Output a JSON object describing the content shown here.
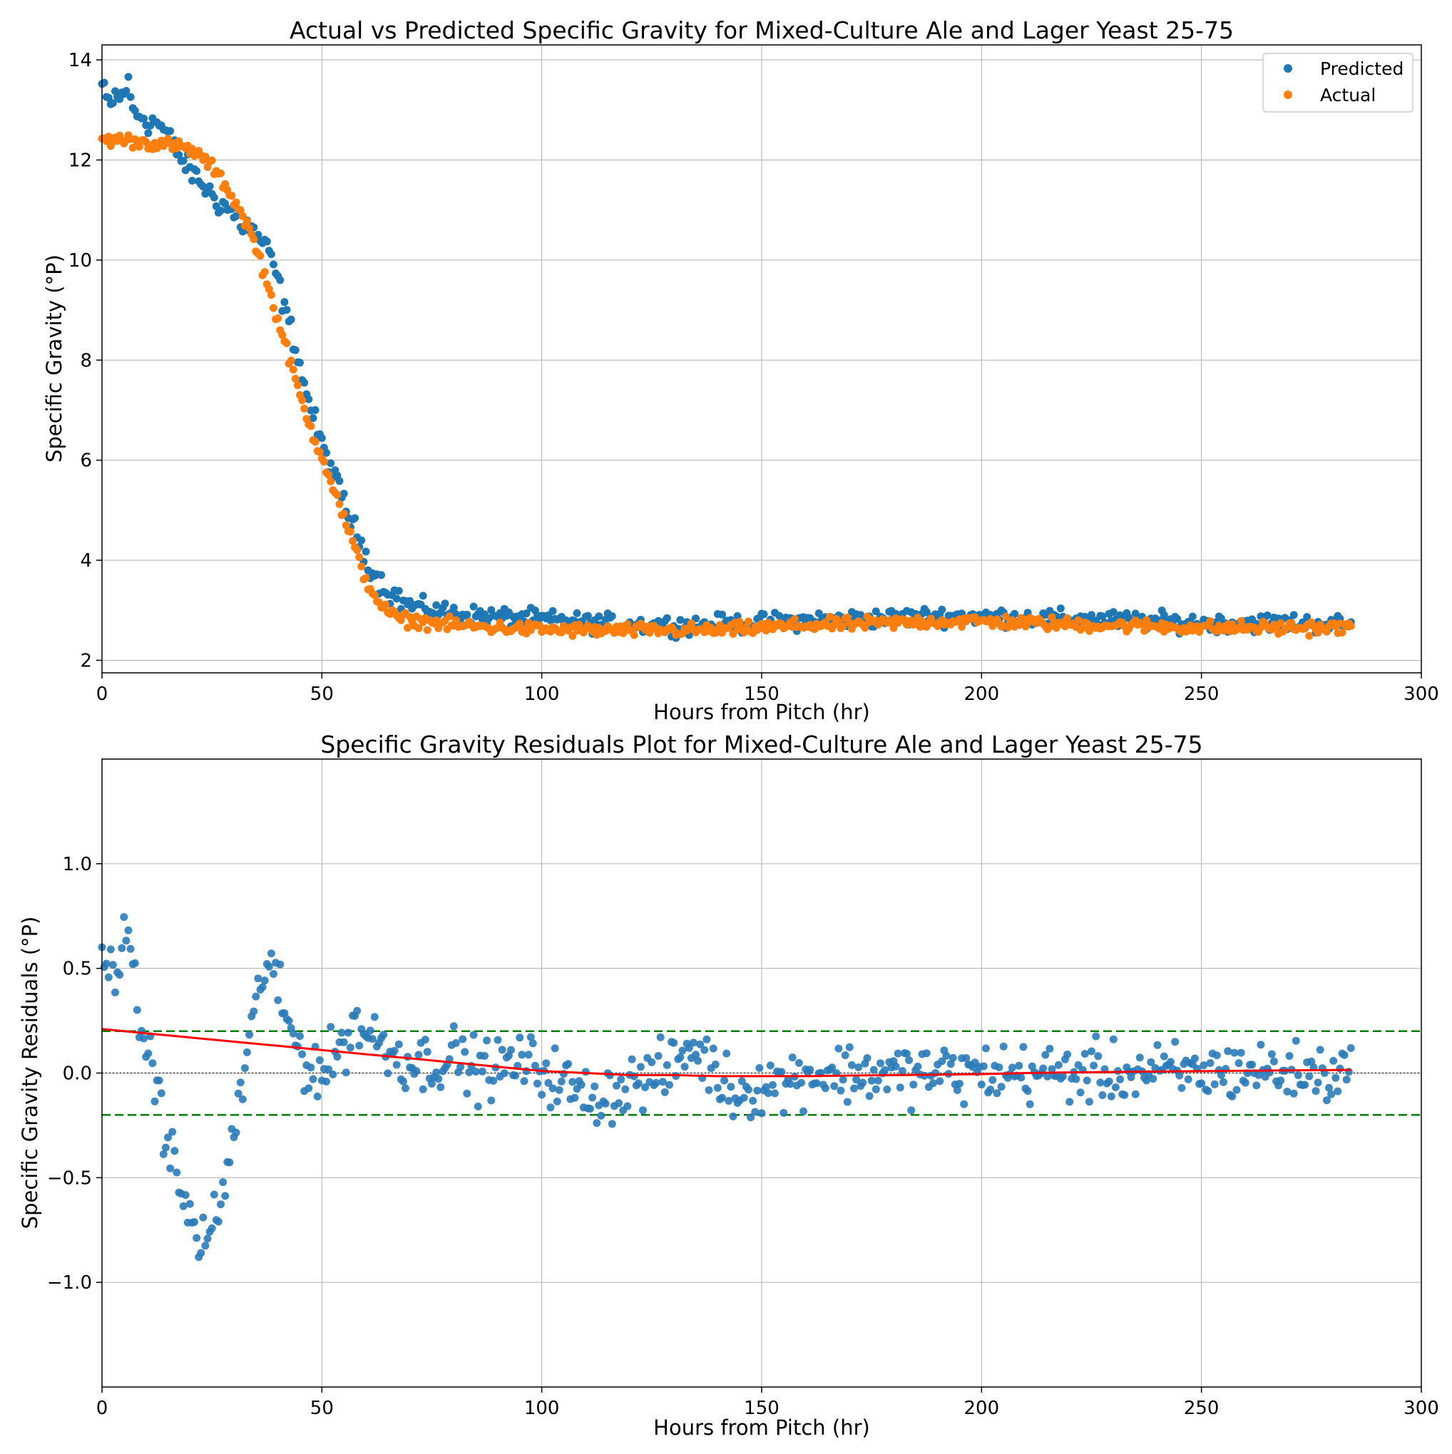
{
  "chart_data": [
    {
      "type": "scatter",
      "title": "Actual vs Predicted Specific Gravity for Mixed-Culture Ale and Lager Yeast 25-75",
      "xlabel": "Hours from Pitch (hr)",
      "ylabel": "Specific Gravity (°P)",
      "xlim": [
        0,
        300
      ],
      "ylim": [
        1.75,
        14.3
      ],
      "xticks": [
        0,
        50,
        100,
        150,
        200,
        250,
        300
      ],
      "yticks": [
        2,
        4,
        6,
        8,
        10,
        12,
        14
      ],
      "xtick_labels": [
        "0",
        "50",
        "100",
        "150",
        "200",
        "250",
        "300"
      ],
      "ytick_labels": [
        "2",
        "4",
        "6",
        "8",
        "10",
        "12",
        "14"
      ],
      "grid": true,
      "legend_position": "top-right",
      "x_step": 0.5,
      "colors": {
        "Predicted": "#1f77b4",
        "Actual": "#ff7f0e"
      },
      "series": [
        {
          "name": "Predicted",
          "x_start": 0,
          "x_end": 284,
          "points": [
            [
              0,
              13.5
            ],
            [
              1,
              13.2
            ],
            [
              2,
              13.1
            ],
            [
              3,
              13.3
            ],
            [
              4,
              13.2
            ],
            [
              5,
              13.4
            ],
            [
              6,
              13.5
            ],
            [
              7,
              13.0
            ],
            [
              8,
              12.9
            ],
            [
              9,
              12.9
            ],
            [
              10,
              12.8
            ],
            [
              11,
              12.7
            ],
            [
              12,
              12.8
            ],
            [
              13,
              12.7
            ],
            [
              14,
              12.6
            ],
            [
              15,
              12.5
            ],
            [
              16,
              12.3
            ],
            [
              17,
              12.2
            ],
            [
              18,
              12.0
            ],
            [
              19,
              11.9
            ],
            [
              20,
              11.8
            ],
            [
              21,
              11.7
            ],
            [
              22,
              11.6
            ],
            [
              23,
              11.5
            ],
            [
              24,
              11.4
            ],
            [
              25,
              11.3
            ],
            [
              26,
              11.2
            ],
            [
              27,
              11.1
            ],
            [
              28,
              11.1
            ],
            [
              29,
              11.0
            ],
            [
              30,
              10.9
            ],
            [
              31,
              10.8
            ],
            [
              32,
              10.7
            ],
            [
              33,
              10.7
            ],
            [
              34,
              10.6
            ],
            [
              35,
              10.5
            ],
            [
              36,
              10.4
            ],
            [
              37,
              10.3
            ],
            [
              38,
              10.1
            ],
            [
              39,
              9.9
            ],
            [
              40,
              9.6
            ],
            [
              41,
              9.2
            ],
            [
              42,
              8.9
            ],
            [
              43,
              8.6
            ],
            [
              44,
              8.3
            ],
            [
              45,
              7.9
            ],
            [
              46,
              7.5
            ],
            [
              47,
              7.2
            ],
            [
              48,
              6.9
            ],
            [
              49,
              6.6
            ],
            [
              50,
              6.3
            ],
            [
              51,
              6.1
            ],
            [
              52,
              5.9
            ],
            [
              53,
              5.6
            ],
            [
              54,
              5.4
            ],
            [
              55,
              5.2
            ],
            [
              56,
              4.9
            ],
            [
              57,
              4.7
            ],
            [
              58,
              4.5
            ],
            [
              59,
              4.3
            ],
            [
              60,
              4.1
            ],
            [
              61,
              3.9
            ],
            [
              62,
              3.7
            ],
            [
              63,
              3.6
            ],
            [
              64,
              3.5
            ],
            [
              65,
              3.4
            ],
            [
              66,
              3.3
            ],
            [
              67,
              3.3
            ],
            [
              68,
              3.2
            ],
            [
              70,
              3.1
            ],
            [
              73,
              3.05
            ],
            [
              76,
              3.0
            ],
            [
              80,
              2.95
            ],
            [
              85,
              2.9
            ],
            [
              90,
              2.87
            ],
            [
              95,
              2.85
            ],
            [
              100,
              2.82
            ],
            [
              110,
              2.75
            ],
            [
              120,
              2.72
            ],
            [
              130,
              2.7
            ],
            [
              140,
              2.72
            ],
            [
              150,
              2.75
            ],
            [
              160,
              2.8
            ],
            [
              170,
              2.82
            ],
            [
              180,
              2.85
            ],
            [
              190,
              2.88
            ],
            [
              200,
              2.88
            ],
            [
              210,
              2.85
            ],
            [
              220,
              2.82
            ],
            [
              230,
              2.8
            ],
            [
              240,
              2.78
            ],
            [
              250,
              2.75
            ],
            [
              260,
              2.75
            ],
            [
              270,
              2.75
            ],
            [
              284,
              2.72
            ]
          ]
        },
        {
          "name": "Actual",
          "x_start": 0,
          "x_end": 284,
          "points": [
            [
              0,
              12.4
            ],
            [
              5,
              12.4
            ],
            [
              10,
              12.35
            ],
            [
              15,
              12.3
            ],
            [
              18,
              12.25
            ],
            [
              20,
              12.2
            ],
            [
              22,
              12.1
            ],
            [
              24,
              11.95
            ],
            [
              26,
              11.75
            ],
            [
              28,
              11.5
            ],
            [
              30,
              11.2
            ],
            [
              32,
              10.9
            ],
            [
              34,
              10.5
            ],
            [
              36,
              10.0
            ],
            [
              38,
              9.4
            ],
            [
              40,
              8.8
            ],
            [
              42,
              8.2
            ],
            [
              44,
              7.6
            ],
            [
              46,
              7.0
            ],
            [
              48,
              6.5
            ],
            [
              50,
              6.1
            ],
            [
              52,
              5.6
            ],
            [
              54,
              5.1
            ],
            [
              56,
              4.6
            ],
            [
              58,
              4.1
            ],
            [
              60,
              3.6
            ],
            [
              62,
              3.3
            ],
            [
              64,
              3.05
            ],
            [
              66,
              2.9
            ],
            [
              68,
              2.82
            ],
            [
              72,
              2.78
            ],
            [
              76,
              2.75
            ],
            [
              80,
              2.7
            ],
            [
              90,
              2.65
            ],
            [
              100,
              2.62
            ],
            [
              110,
              2.6
            ],
            [
              120,
              2.6
            ],
            [
              130,
              2.6
            ],
            [
              140,
              2.6
            ],
            [
              150,
              2.65
            ],
            [
              160,
              2.7
            ],
            [
              170,
              2.72
            ],
            [
              180,
              2.75
            ],
            [
              190,
              2.78
            ],
            [
              200,
              2.78
            ],
            [
              210,
              2.75
            ],
            [
              220,
              2.72
            ],
            [
              230,
              2.7
            ],
            [
              240,
              2.68
            ],
            [
              250,
              2.65
            ],
            [
              260,
              2.65
            ],
            [
              270,
              2.65
            ],
            [
              284,
              2.65
            ]
          ]
        }
      ]
    },
    {
      "type": "scatter",
      "title": "Specific Gravity Residuals Plot for Mixed-Culture Ale and Lager Yeast 25-75",
      "xlabel": "Hours from Pitch (hr)",
      "ylabel": "Specific Gravity Residuals (°P)",
      "xlim": [
        0,
        300
      ],
      "ylim": [
        -1.5,
        1.5
      ],
      "xticks": [
        0,
        50,
        100,
        150,
        200,
        250,
        300
      ],
      "yticks": [
        -1.0,
        -0.5,
        0.0,
        0.5,
        1.0
      ],
      "xtick_labels": [
        "0",
        "50",
        "100",
        "150",
        "200",
        "250",
        "300"
      ],
      "ytick_labels": [
        "−1.0",
        "−0.5",
        "0.0",
        "0.5",
        "1.0"
      ],
      "grid": true,
      "x_step": 0.5,
      "colors": {
        "points": "#2b7bb9",
        "trend": "#ff0000",
        "bounds": "#008000",
        "zero": "#333333"
      },
      "series": [
        {
          "x_start": 0,
          "x_end": 284,
          "points": [
            [
              0,
              0.58
            ],
            [
              1,
              0.52
            ],
            [
              2,
              0.48
            ],
            [
              3,
              0.5
            ],
            [
              4,
              0.6
            ],
            [
              5,
              0.72
            ],
            [
              6,
              0.55
            ],
            [
              7,
              0.42
            ],
            [
              8,
              0.32
            ],
            [
              9,
              0.24
            ],
            [
              10,
              0.12
            ],
            [
              11,
              0.05
            ],
            [
              12,
              -0.02
            ],
            [
              13,
              -0.12
            ],
            [
              14,
              -0.22
            ],
            [
              15,
              -0.32
            ],
            [
              16,
              -0.42
            ],
            [
              17,
              -0.5
            ],
            [
              18,
              -0.56
            ],
            [
              19,
              -0.64
            ],
            [
              20,
              -0.7
            ],
            [
              21,
              -0.75
            ],
            [
              22,
              -0.78
            ],
            [
              23,
              -0.8
            ],
            [
              24,
              -0.78
            ],
            [
              25,
              -0.75
            ],
            [
              26,
              -0.7
            ],
            [
              27,
              -0.62
            ],
            [
              28,
              -0.52
            ],
            [
              29,
              -0.4
            ],
            [
              30,
              -0.28
            ],
            [
              31,
              -0.16
            ],
            [
              32,
              -0.04
            ],
            [
              33,
              0.08
            ],
            [
              34,
              0.2
            ],
            [
              35,
              0.3
            ],
            [
              36,
              0.42
            ],
            [
              37,
              0.52
            ],
            [
              38,
              0.55
            ],
            [
              39,
              0.48
            ],
            [
              40,
              0.38
            ],
            [
              41,
              0.3
            ],
            [
              42,
              0.24
            ],
            [
              43,
              0.2
            ],
            [
              44,
              0.16
            ],
            [
              45,
              0.12
            ],
            [
              46,
              0.06
            ],
            [
              48,
              0.03
            ],
            [
              50,
              0.0
            ],
            [
              52,
              0.05
            ],
            [
              55,
              0.15
            ],
            [
              58,
              0.25
            ],
            [
              60,
              0.2
            ],
            [
              63,
              0.15
            ],
            [
              66,
              0.1
            ],
            [
              70,
              0.05
            ],
            [
              75,
              0.05
            ],
            [
              80,
              0.08
            ],
            [
              85,
              0.02
            ],
            [
              90,
              0.02
            ],
            [
              95,
              0.05
            ],
            [
              100,
              0.02
            ],
            [
              105,
              -0.05
            ],
            [
              110,
              -0.12
            ],
            [
              115,
              -0.1
            ],
            [
              120,
              -0.05
            ],
            [
              125,
              -0.02
            ],
            [
              130,
              0.02
            ],
            [
              133,
              0.12
            ],
            [
              136,
              0.1
            ],
            [
              140,
              -0.02
            ],
            [
              145,
              -0.1
            ],
            [
              150,
              -0.05
            ],
            [
              155,
              -0.05
            ],
            [
              160,
              0.0
            ],
            [
              170,
              0.0
            ],
            [
              180,
              0.0
            ],
            [
              190,
              0.0
            ],
            [
              200,
              0.0
            ],
            [
              210,
              0.0
            ],
            [
              220,
              0.0
            ],
            [
              230,
              0.0
            ],
            [
              240,
              0.0
            ],
            [
              250,
              0.0
            ],
            [
              260,
              0.02
            ],
            [
              270,
              0.0
            ],
            [
              284,
              0.0
            ]
          ]
        }
      ],
      "trend_line": [
        [
          0,
          0.21
        ],
        [
          10,
          0.19
        ],
        [
          20,
          0.17
        ],
        [
          30,
          0.15
        ],
        [
          40,
          0.13
        ],
        [
          50,
          0.11
        ],
        [
          60,
          0.09
        ],
        [
          70,
          0.07
        ],
        [
          80,
          0.05
        ],
        [
          90,
          0.03
        ],
        [
          100,
          0.01
        ],
        [
          110,
          0.0
        ],
        [
          120,
          -0.01
        ],
        [
          130,
          -0.01
        ],
        [
          140,
          -0.015
        ],
        [
          150,
          -0.015
        ],
        [
          160,
          -0.015
        ],
        [
          170,
          -0.012
        ],
        [
          180,
          -0.01
        ],
        [
          190,
          -0.008
        ],
        [
          200,
          -0.005
        ],
        [
          210,
          0.0
        ],
        [
          220,
          0.003
        ],
        [
          230,
          0.005
        ],
        [
          240,
          0.007
        ],
        [
          250,
          0.009
        ],
        [
          260,
          0.011
        ],
        [
          270,
          0.013
        ],
        [
          284,
          0.015
        ]
      ],
      "bounds": [
        -0.2,
        0.2
      ]
    }
  ]
}
